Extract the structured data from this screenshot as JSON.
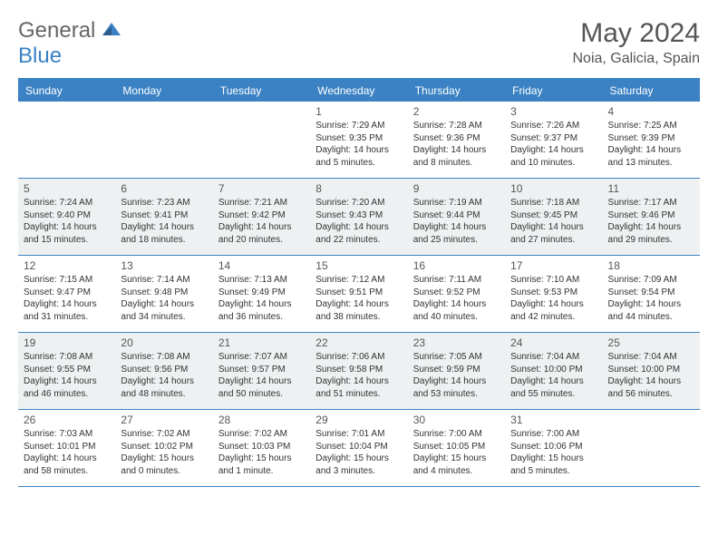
{
  "logo": {
    "text1": "General",
    "text2": "Blue"
  },
  "title": "May 2024",
  "location": "Noia, Galicia, Spain",
  "colors": {
    "accent": "#3b82c4",
    "shaded_bg": "#eef1f2",
    "text": "#333333",
    "muted": "#555555"
  },
  "weekdays": [
    "Sunday",
    "Monday",
    "Tuesday",
    "Wednesday",
    "Thursday",
    "Friday",
    "Saturday"
  ],
  "weeks": [
    [
      {
        "n": "",
        "sr": "",
        "ss": "",
        "dl": ""
      },
      {
        "n": "",
        "sr": "",
        "ss": "",
        "dl": ""
      },
      {
        "n": "",
        "sr": "",
        "ss": "",
        "dl": ""
      },
      {
        "n": "1",
        "sr": "Sunrise: 7:29 AM",
        "ss": "Sunset: 9:35 PM",
        "dl": "Daylight: 14 hours and 5 minutes."
      },
      {
        "n": "2",
        "sr": "Sunrise: 7:28 AM",
        "ss": "Sunset: 9:36 PM",
        "dl": "Daylight: 14 hours and 8 minutes."
      },
      {
        "n": "3",
        "sr": "Sunrise: 7:26 AM",
        "ss": "Sunset: 9:37 PM",
        "dl": "Daylight: 14 hours and 10 minutes."
      },
      {
        "n": "4",
        "sr": "Sunrise: 7:25 AM",
        "ss": "Sunset: 9:39 PM",
        "dl": "Daylight: 14 hours and 13 minutes."
      }
    ],
    [
      {
        "n": "5",
        "sr": "Sunrise: 7:24 AM",
        "ss": "Sunset: 9:40 PM",
        "dl": "Daylight: 14 hours and 15 minutes."
      },
      {
        "n": "6",
        "sr": "Sunrise: 7:23 AM",
        "ss": "Sunset: 9:41 PM",
        "dl": "Daylight: 14 hours and 18 minutes."
      },
      {
        "n": "7",
        "sr": "Sunrise: 7:21 AM",
        "ss": "Sunset: 9:42 PM",
        "dl": "Daylight: 14 hours and 20 minutes."
      },
      {
        "n": "8",
        "sr": "Sunrise: 7:20 AM",
        "ss": "Sunset: 9:43 PM",
        "dl": "Daylight: 14 hours and 22 minutes."
      },
      {
        "n": "9",
        "sr": "Sunrise: 7:19 AM",
        "ss": "Sunset: 9:44 PM",
        "dl": "Daylight: 14 hours and 25 minutes."
      },
      {
        "n": "10",
        "sr": "Sunrise: 7:18 AM",
        "ss": "Sunset: 9:45 PM",
        "dl": "Daylight: 14 hours and 27 minutes."
      },
      {
        "n": "11",
        "sr": "Sunrise: 7:17 AM",
        "ss": "Sunset: 9:46 PM",
        "dl": "Daylight: 14 hours and 29 minutes."
      }
    ],
    [
      {
        "n": "12",
        "sr": "Sunrise: 7:15 AM",
        "ss": "Sunset: 9:47 PM",
        "dl": "Daylight: 14 hours and 31 minutes."
      },
      {
        "n": "13",
        "sr": "Sunrise: 7:14 AM",
        "ss": "Sunset: 9:48 PM",
        "dl": "Daylight: 14 hours and 34 minutes."
      },
      {
        "n": "14",
        "sr": "Sunrise: 7:13 AM",
        "ss": "Sunset: 9:49 PM",
        "dl": "Daylight: 14 hours and 36 minutes."
      },
      {
        "n": "15",
        "sr": "Sunrise: 7:12 AM",
        "ss": "Sunset: 9:51 PM",
        "dl": "Daylight: 14 hours and 38 minutes."
      },
      {
        "n": "16",
        "sr": "Sunrise: 7:11 AM",
        "ss": "Sunset: 9:52 PM",
        "dl": "Daylight: 14 hours and 40 minutes."
      },
      {
        "n": "17",
        "sr": "Sunrise: 7:10 AM",
        "ss": "Sunset: 9:53 PM",
        "dl": "Daylight: 14 hours and 42 minutes."
      },
      {
        "n": "18",
        "sr": "Sunrise: 7:09 AM",
        "ss": "Sunset: 9:54 PM",
        "dl": "Daylight: 14 hours and 44 minutes."
      }
    ],
    [
      {
        "n": "19",
        "sr": "Sunrise: 7:08 AM",
        "ss": "Sunset: 9:55 PM",
        "dl": "Daylight: 14 hours and 46 minutes."
      },
      {
        "n": "20",
        "sr": "Sunrise: 7:08 AM",
        "ss": "Sunset: 9:56 PM",
        "dl": "Daylight: 14 hours and 48 minutes."
      },
      {
        "n": "21",
        "sr": "Sunrise: 7:07 AM",
        "ss": "Sunset: 9:57 PM",
        "dl": "Daylight: 14 hours and 50 minutes."
      },
      {
        "n": "22",
        "sr": "Sunrise: 7:06 AM",
        "ss": "Sunset: 9:58 PM",
        "dl": "Daylight: 14 hours and 51 minutes."
      },
      {
        "n": "23",
        "sr": "Sunrise: 7:05 AM",
        "ss": "Sunset: 9:59 PM",
        "dl": "Daylight: 14 hours and 53 minutes."
      },
      {
        "n": "24",
        "sr": "Sunrise: 7:04 AM",
        "ss": "Sunset: 10:00 PM",
        "dl": "Daylight: 14 hours and 55 minutes."
      },
      {
        "n": "25",
        "sr": "Sunrise: 7:04 AM",
        "ss": "Sunset: 10:00 PM",
        "dl": "Daylight: 14 hours and 56 minutes."
      }
    ],
    [
      {
        "n": "26",
        "sr": "Sunrise: 7:03 AM",
        "ss": "Sunset: 10:01 PM",
        "dl": "Daylight: 14 hours and 58 minutes."
      },
      {
        "n": "27",
        "sr": "Sunrise: 7:02 AM",
        "ss": "Sunset: 10:02 PM",
        "dl": "Daylight: 15 hours and 0 minutes."
      },
      {
        "n": "28",
        "sr": "Sunrise: 7:02 AM",
        "ss": "Sunset: 10:03 PM",
        "dl": "Daylight: 15 hours and 1 minute."
      },
      {
        "n": "29",
        "sr": "Sunrise: 7:01 AM",
        "ss": "Sunset: 10:04 PM",
        "dl": "Daylight: 15 hours and 3 minutes."
      },
      {
        "n": "30",
        "sr": "Sunrise: 7:00 AM",
        "ss": "Sunset: 10:05 PM",
        "dl": "Daylight: 15 hours and 4 minutes."
      },
      {
        "n": "31",
        "sr": "Sunrise: 7:00 AM",
        "ss": "Sunset: 10:06 PM",
        "dl": "Daylight: 15 hours and 5 minutes."
      },
      {
        "n": "",
        "sr": "",
        "ss": "",
        "dl": ""
      }
    ]
  ]
}
